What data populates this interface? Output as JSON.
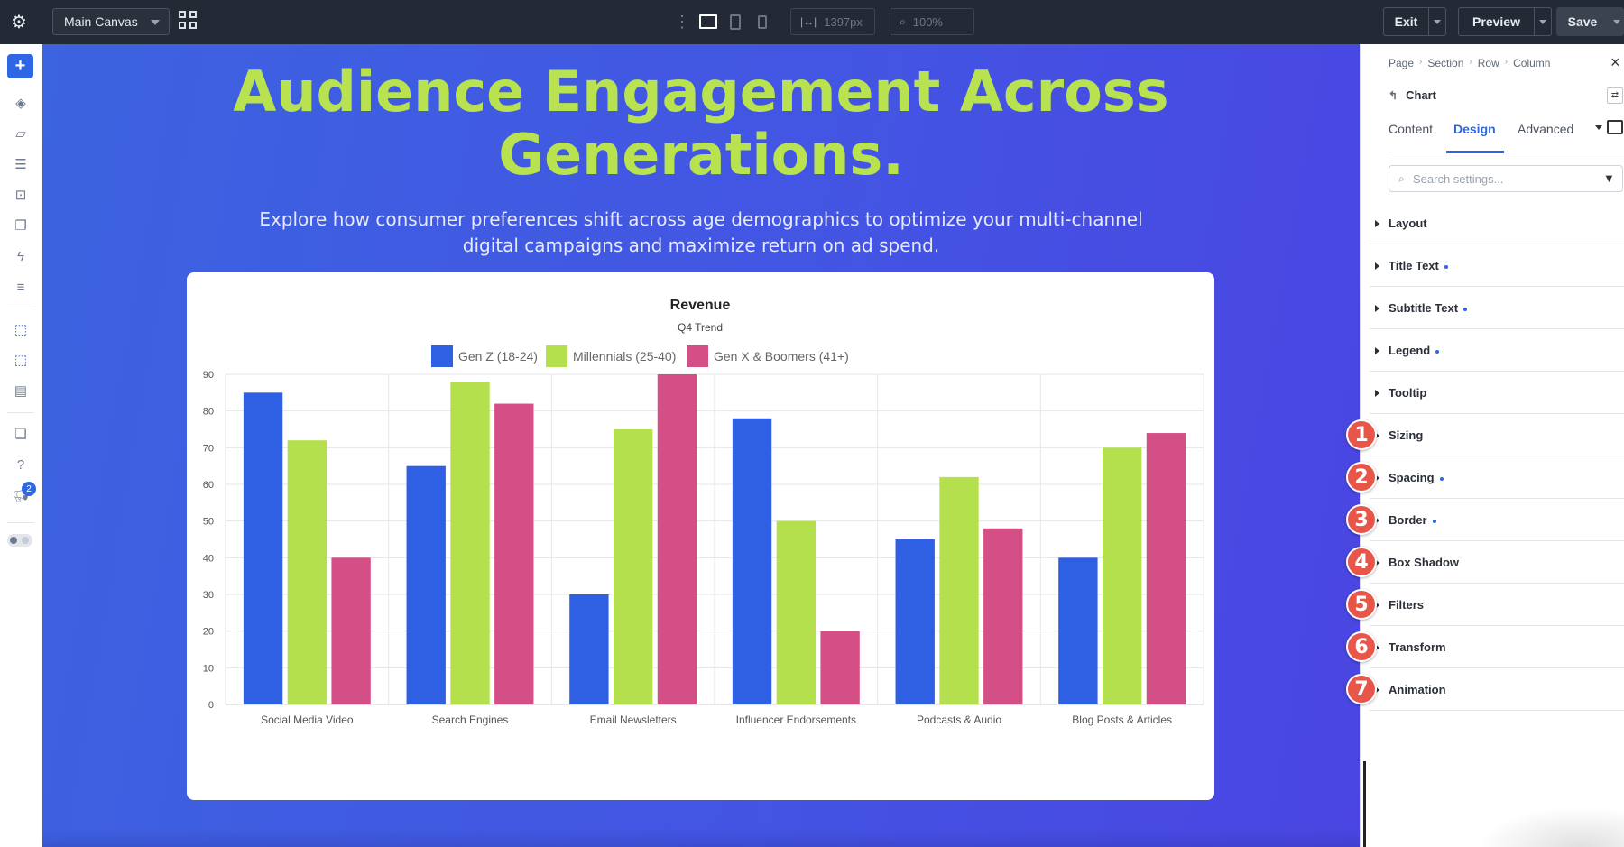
{
  "topbar": {
    "canvas_select": "Main Canvas",
    "width_readout": "1397px",
    "zoom_readout": "100%",
    "exit_label": "Exit",
    "preview_label": "Preview",
    "save_label": "Save",
    "more_glyph": "⋮",
    "icons": [
      "gear-icon",
      "grid-view-icon",
      "desktop-icon",
      "tablet-icon",
      "phone-icon",
      "width-icon",
      "zoom-icon"
    ]
  },
  "leftbar": {
    "plus_glyph": "+",
    "help_glyph": "?",
    "notification_count": "2",
    "icons": [
      "add-icon",
      "layers-icon",
      "theme-builder-icon",
      "database-icon",
      "portability-icon",
      "pages-icon",
      "lightning-icon",
      "settings-lines-icon",
      "select-icon",
      "multi-select-icon",
      "canvas-icon",
      "stack-icon",
      "help-icon",
      "megaphone-icon",
      "mode-toggle-icon"
    ]
  },
  "hero": {
    "title": "Audience Engagement Across Generations.",
    "subtitle": "Explore how consumer preferences shift across age demographics to optimize your multi-channel digital campaigns and maximize return on ad spend."
  },
  "chart_data": {
    "type": "bar",
    "title": "Revenue",
    "subtitle": "Q4 Trend",
    "legend_position": "top",
    "grid": true,
    "ylim": [
      0,
      90
    ],
    "yticks": [
      0,
      10,
      20,
      30,
      40,
      50,
      60,
      70,
      80,
      90
    ],
    "categories": [
      "Social Media Video",
      "Search Engines",
      "Email Newsletters",
      "Influencer Endorsements",
      "Podcasts & Audio",
      "Blog Posts & Articles"
    ],
    "series": [
      {
        "name": "Gen Z (18-24)",
        "color": "#2f5fe2",
        "values": [
          85,
          65,
          30,
          78,
          45,
          40
        ]
      },
      {
        "name": "Millennials (25-40)",
        "color": "#b5e04d",
        "values": [
          72,
          88,
          75,
          50,
          62,
          70
        ]
      },
      {
        "name": "Gen X & Boomers (41+)",
        "color": "#d34f85",
        "values": [
          40,
          82,
          90,
          20,
          48,
          74
        ]
      }
    ]
  },
  "panel": {
    "breadcrumb": [
      "Page",
      "Section",
      "Row",
      "Column"
    ],
    "breadcrumb_sep": "›",
    "back_glyph": "↰",
    "close_glyph": "×",
    "adjust_glyph": "⇄",
    "more_glyph": "▾",
    "search_glyph": "⌕",
    "filter_glyph": "▼",
    "module": "Chart",
    "tabs": [
      "Content",
      "Design",
      "Advanced"
    ],
    "active_tab": "Design",
    "search_placeholder": "Search settings...",
    "sections": [
      {
        "label": "Layout",
        "modified": false
      },
      {
        "label": "Title Text",
        "modified": true
      },
      {
        "label": "Subtitle Text",
        "modified": true
      },
      {
        "label": "Legend",
        "modified": true
      },
      {
        "label": "Tooltip",
        "modified": false
      },
      {
        "label": "Sizing",
        "modified": false
      },
      {
        "label": "Spacing",
        "modified": true
      },
      {
        "label": "Border",
        "modified": true
      },
      {
        "label": "Box Shadow",
        "modified": false
      },
      {
        "label": "Filters",
        "modified": false
      },
      {
        "label": "Transform",
        "modified": false
      },
      {
        "label": "Animation",
        "modified": false
      }
    ],
    "step_badges": [
      "1",
      "2",
      "3",
      "4",
      "5",
      "6",
      "7"
    ],
    "accent_color": "#2e66e3",
    "badge_color": "#e8564a"
  }
}
